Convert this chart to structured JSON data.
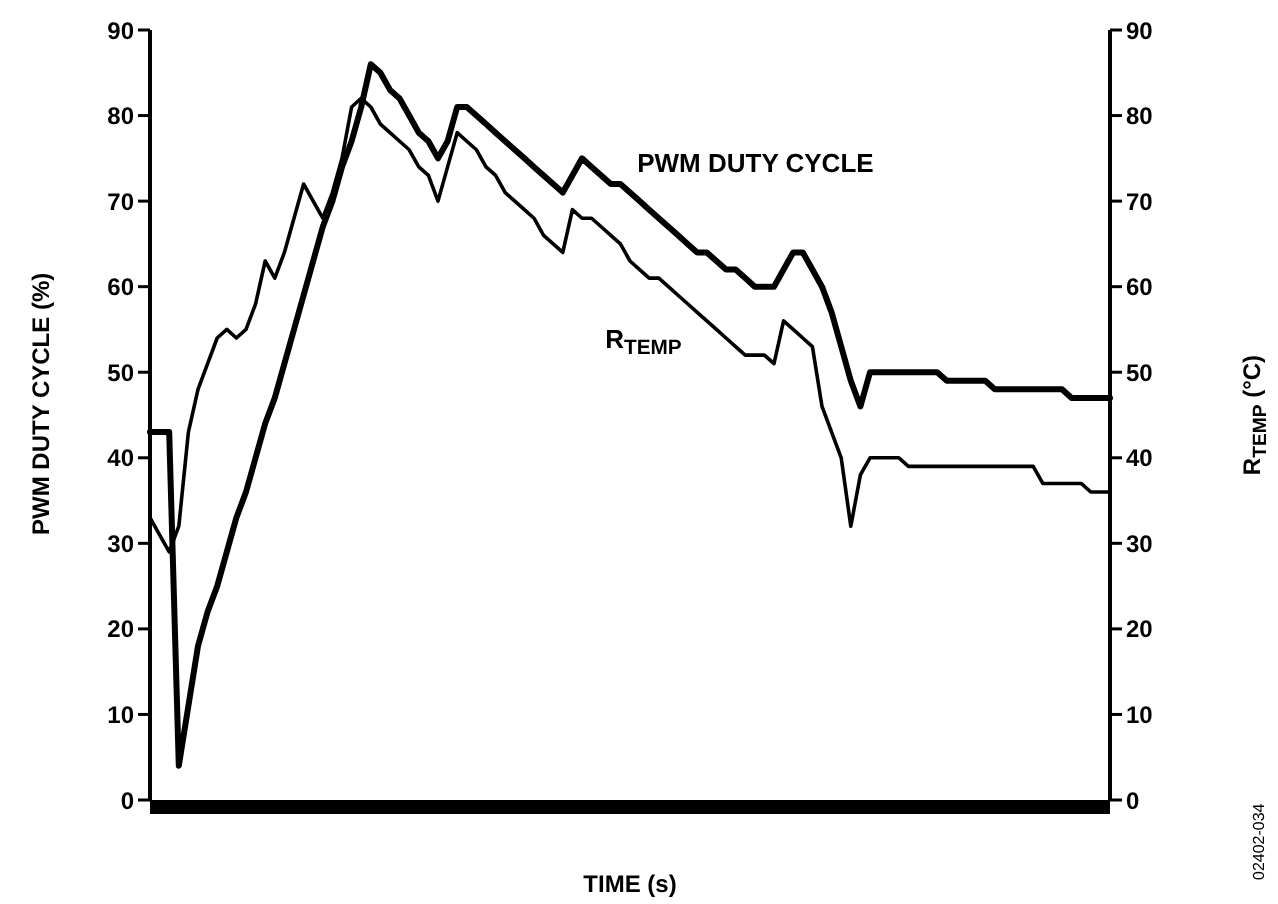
{
  "chart_data": {
    "type": "line",
    "xlabel": "TIME (s)",
    "ylabel": "PWM DUTY CYCLE (%)",
    "y2label": "R$_{TEMP}$ (°C)",
    "categories": [
      null,
      null,
      null,
      null,
      null,
      null,
      null,
      null,
      null,
      null,
      null,
      null,
      null,
      null,
      null,
      null,
      null,
      null,
      null,
      null,
      null,
      null,
      null,
      null,
      null,
      null,
      null,
      null,
      null,
      null,
      null,
      null,
      null,
      null,
      null,
      null,
      null,
      null,
      null,
      null,
      null,
      null,
      null,
      null,
      null,
      null,
      null,
      null,
      null,
      null,
      null,
      null,
      null,
      null,
      null,
      null,
      null,
      null,
      null,
      null,
      null,
      null,
      null,
      null,
      null,
      null,
      null,
      null,
      null,
      null,
      null,
      null,
      null,
      null,
      null,
      null,
      null,
      null,
      null,
      null,
      null,
      null,
      null,
      null,
      null,
      null,
      null,
      null,
      null,
      null,
      null,
      null,
      null,
      null,
      null,
      null,
      null,
      null,
      null,
      null,
      null
    ],
    "ylim": [
      0,
      90
    ],
    "yticks": [
      0,
      10,
      20,
      30,
      40,
      50,
      60,
      70,
      80,
      90
    ],
    "y2lim": [
      0,
      90
    ],
    "y2ticks": [
      0,
      10,
      20,
      30,
      40,
      50,
      60,
      70,
      80,
      90
    ],
    "tick_labels": "y",
    "marker": "none",
    "line_style": "solid",
    "series": [
      {
        "name": "PWM DUTY CYCLE",
        "color": "#000000",
        "values": [
          43,
          43,
          43,
          4,
          11,
          18,
          22,
          25,
          29,
          33,
          36,
          40,
          44,
          47,
          51,
          55,
          59,
          63,
          67,
          70,
          74,
          77,
          81,
          86,
          85,
          83,
          82,
          80,
          78,
          77,
          75,
          77,
          81,
          81,
          80,
          79,
          78,
          77,
          76,
          75,
          74,
          73,
          72,
          71,
          73,
          75,
          74,
          73,
          72,
          72,
          71,
          70,
          69,
          68,
          67,
          66,
          65,
          64,
          64,
          63,
          62,
          62,
          61,
          60,
          60,
          60,
          62,
          64,
          64,
          62,
          60,
          57,
          53,
          49,
          46,
          50,
          50,
          50,
          50,
          50,
          50,
          50,
          50,
          49,
          49,
          49,
          49,
          49,
          48,
          48,
          48,
          48,
          48,
          48,
          48,
          48,
          47,
          47,
          47,
          47,
          47
        ]
      },
      {
        "name": "R$_{TEMP}$",
        "color": "#000000",
        "axis": "y2",
        "values": [
          33,
          31,
          29,
          32,
          43,
          48,
          51,
          54,
          55,
          54,
          55,
          58,
          63,
          61,
          64,
          68,
          72,
          70,
          68,
          71,
          75,
          81,
          82,
          81,
          79,
          78,
          77,
          76,
          74,
          73,
          70,
          74,
          78,
          77,
          76,
          74,
          73,
          71,
          70,
          69,
          68,
          66,
          65,
          64,
          69,
          68,
          68,
          67,
          66,
          65,
          63,
          62,
          61,
          61,
          60,
          59,
          58,
          57,
          56,
          55,
          54,
          53,
          52,
          52,
          52,
          51,
          56,
          55,
          54,
          53,
          46,
          43,
          40,
          32,
          38,
          40,
          40,
          40,
          40,
          39,
          39,
          39,
          39,
          39,
          39,
          39,
          39,
          39,
          39,
          39,
          39,
          39,
          39,
          37,
          37,
          37,
          37,
          37,
          36,
          36,
          36
        ]
      }
    ],
    "annotations": [
      "02402-034"
    ]
  }
}
